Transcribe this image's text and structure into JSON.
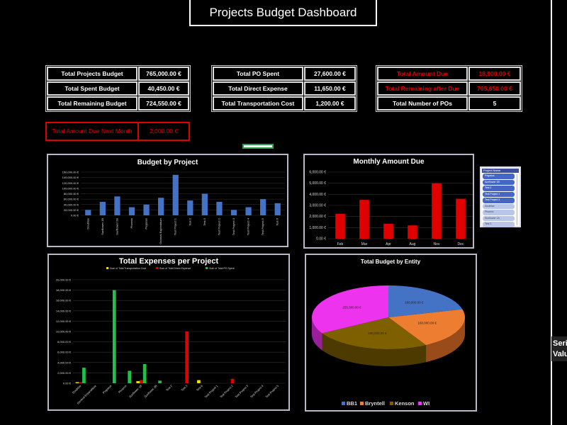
{
  "title": "Projects Budget Dashboard",
  "kpi_group1": [
    {
      "label": "Total Projects Budget",
      "value": "765,000.00 €"
    },
    {
      "label": "Total Spent Budget",
      "value": "40,450.00 €"
    },
    {
      "label": "Total Remaining Budget",
      "value": "724,550.00 €"
    }
  ],
  "kpi_group2": [
    {
      "label": "Total PO Spent",
      "value": "27,600.00 €"
    },
    {
      "label": "Total Direct Expense",
      "value": "11,650.00 €"
    },
    {
      "label": "Total Transportation Cost",
      "value": "1,200.00 €"
    }
  ],
  "kpi_group3": [
    {
      "label": "Total Amount Due",
      "value": "18,900.00 €"
    },
    {
      "label": "Total Remaining after Due",
      "value": "705,650.00 €"
    },
    {
      "label": "Total Number of POs",
      "value": "5"
    }
  ],
  "next_month": {
    "label": "Total Amount Due Next Month",
    "value": "2,000.00 €"
  },
  "slicer": {
    "header": "Project Name",
    "items": [
      {
        "label": "Pegasus",
        "selected": true
      },
      {
        "label": "Sunflower 1B",
        "selected": true
      },
      {
        "label": "Test 2",
        "selected": true
      },
      {
        "label": "Test Project 1",
        "selected": true
      },
      {
        "label": "Test Project 3",
        "selected": true
      },
      {
        "label": "Doublise",
        "selected": false
      },
      {
        "label": "Phoenix",
        "selected": false
      },
      {
        "label": "Sunflower 1A",
        "selected": false
      },
      {
        "label": "Test 3",
        "selected": false
      }
    ]
  },
  "tooltip": {
    "line1": "Series",
    "line2": "Value"
  },
  "colors": {
    "blue": "#4472c4",
    "red": "#e00000",
    "green": "#22c04a",
    "yellow": "#f5e400",
    "orange": "#ed7d31",
    "olive": "#7f6000",
    "magenta": "#ee33ee"
  },
  "chart_data": [
    {
      "type": "bar",
      "title": "Budget by Project",
      "categories": [
        "Doublise",
        "Sunflower 1B",
        "Sunflower 2B",
        "Phoenix",
        "Pegasus",
        "General Expenditure",
        "Test Project 1",
        "Test 2",
        "Test 3",
        "Test Project 2",
        "Test Project 3",
        "Test Project 4",
        "Test Project 5",
        "Test 6"
      ],
      "values": [
        20000,
        50000,
        70000,
        30000,
        40000,
        65000,
        150000,
        55000,
        80000,
        50000,
        20000,
        30000,
        60000,
        45000
      ],
      "ylim": [
        0,
        160000
      ],
      "yticks": [
        "0.00 €",
        "20,000.00 €",
        "40,000.00 €",
        "60,000.00 €",
        "80,000.00 €",
        "100,000.00 €",
        "120,000.00 €",
        "140,000.00 €",
        "160,000.00 €"
      ]
    },
    {
      "type": "bar",
      "title": "Monthly Amount Due",
      "categories": [
        "Feb",
        "Mar",
        "Apr",
        "Aug",
        "Nov",
        "Dec"
      ],
      "values": [
        2250,
        3500,
        1350,
        1200,
        5000,
        3600
      ],
      "ylim": [
        0,
        6000
      ],
      "yticks": [
        "0.00 €",
        "1,000.00 €",
        "2,000.00 €",
        "3,000.00 €",
        "4,000.00 €",
        "5,000.00 €",
        "6,000.00 €"
      ]
    },
    {
      "type": "bar",
      "title": "Total Expenses per Project",
      "categories": [
        "Doublise",
        "General Expenditure",
        "Pegasus",
        "Phoenix",
        "Sunflower 1B",
        "Sunflower 2B",
        "Test 2",
        "Test 3",
        "Test 6",
        "Test Project 1",
        "Test Project 2",
        "Test Project 3",
        "Test Project 4",
        "Test Project 5"
      ],
      "series": [
        {
          "name": "Sum of Total Transportation Cost",
          "values": [
            200,
            0,
            0,
            0,
            400,
            0,
            0,
            0,
            600,
            0,
            0,
            0,
            0,
            0
          ]
        },
        {
          "name": "Sum of Total Direct Expense",
          "values": [
            200,
            0,
            0,
            0,
            600,
            0,
            0,
            10000,
            0,
            0,
            850,
            0,
            0,
            0
          ]
        },
        {
          "name": "Sum of Total PO Spent",
          "values": [
            3000,
            0,
            18000,
            2400,
            3700,
            500,
            0,
            0,
            0,
            0,
            0,
            0,
            0,
            0
          ]
        }
      ],
      "ylim": [
        0,
        20000
      ],
      "yticks": [
        "0.00 €",
        "2,000.00 €",
        "4,000.00 €",
        "6,000.00 €",
        "8,000.00 €",
        "10,000.00 €",
        "12,000.00 €",
        "14,000.00 €",
        "16,000.00 €",
        "18,000.00 €",
        "20,000.00 €"
      ],
      "legend": "top"
    },
    {
      "type": "pie",
      "title": "Total Budget by Entity",
      "categories": [
        "BB1",
        "Bryntell",
        "Kenson",
        "WI"
      ],
      "values": [
        160000,
        160000,
        190000,
        255000
      ],
      "labels": [
        "160,000.00 €",
        "160,000.00 €",
        "190,000.00 €",
        "255,000.00 €"
      ],
      "legend": "bottom"
    }
  ]
}
